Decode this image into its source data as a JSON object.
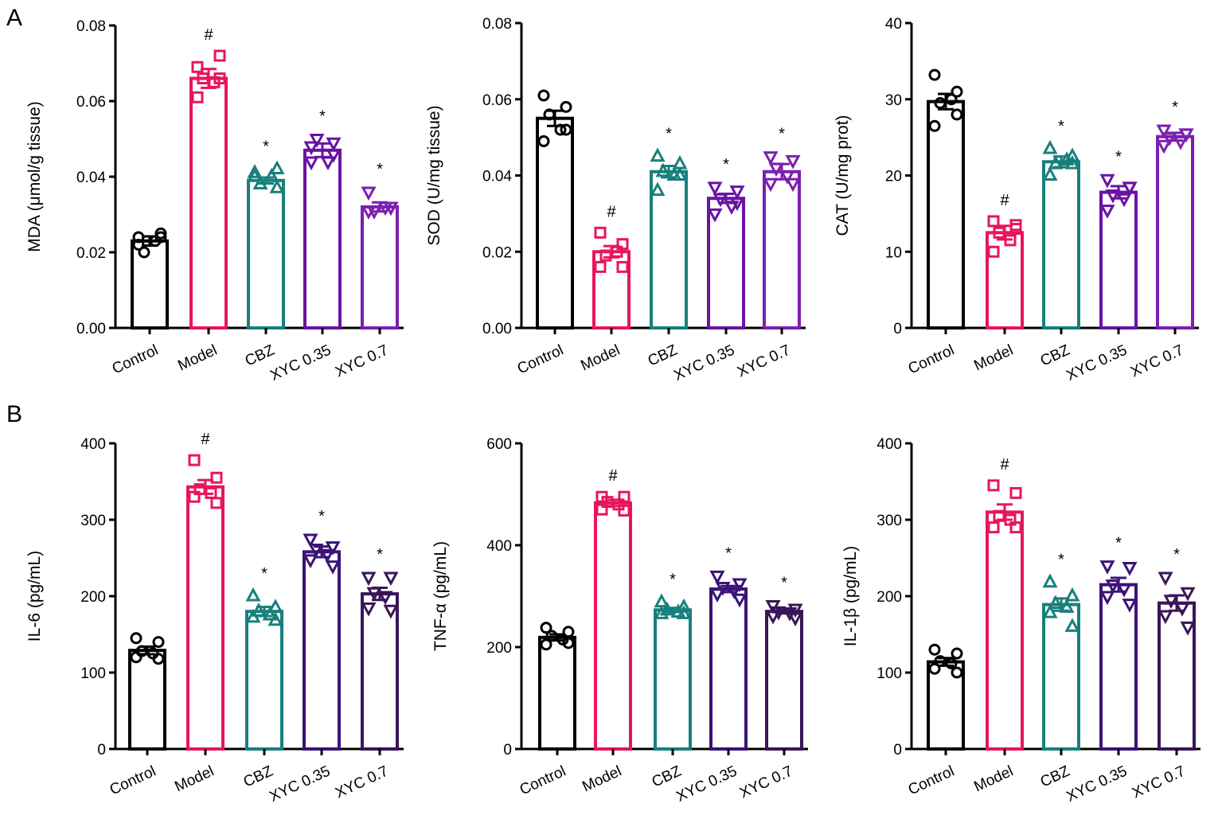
{
  "panel_labels": [
    "A",
    "B"
  ],
  "groups": [
    "Control",
    "Model",
    "CBZ",
    "XYC 0.35",
    "XYC 0.7"
  ],
  "colors": {
    "Control": "#000000",
    "Model": "#e8155e",
    "CBZ": "#17807c",
    "XYC 0.35 (A)": "#6a12a6",
    "XYC 0.7 (A)": "#7b1fb0",
    "XYC 0.35 (B)": "#3b1378",
    "XYC 0.7 (B)": "#3a1558"
  },
  "chart_data": [
    {
      "type": "bar",
      "panel": "A",
      "ylabel": "MDA (μmol/g tissue)",
      "ylim": [
        0,
        0.08
      ],
      "yticks": [
        "0.00",
        "0.02",
        "0.04",
        "0.06",
        "0.08"
      ],
      "ytick_values": [
        0,
        0.02,
        0.04,
        0.06,
        0.08
      ],
      "categories": [
        "Control",
        "Model",
        "CBZ",
        "XYC 0.35",
        "XYC 0.7"
      ],
      "values": [
        0.023,
        0.066,
        0.039,
        0.047,
        0.032
      ],
      "sem": [
        0.0012,
        0.0025,
        0.0008,
        0.0018,
        0.0012
      ],
      "points": [
        [
          0.024,
          0.025,
          0.02,
          0.023,
          0.022,
          0.024
        ],
        [
          0.069,
          0.072,
          0.066,
          0.065,
          0.061,
          0.066
        ],
        [
          0.041,
          0.042,
          0.038,
          0.04,
          0.04,
          0.037
        ],
        [
          0.048,
          0.049,
          0.05,
          0.044,
          0.044,
          0.046
        ],
        [
          0.036,
          0.032,
          0.031,
          0.032,
          0.031,
          0.032
        ]
      ],
      "annotations": [
        "",
        "#",
        "*",
        "*",
        "*"
      ]
    },
    {
      "type": "bar",
      "panel": "A",
      "ylabel": "SOD (U/mg tissue)",
      "ylim": [
        0,
        0.08
      ],
      "yticks": [
        "0.00",
        "0.02",
        "0.04",
        "0.06",
        "0.08"
      ],
      "ytick_values": [
        0,
        0.02,
        0.04,
        0.06,
        0.08
      ],
      "categories": [
        "Control",
        "Model",
        "CBZ",
        "XYC 0.35",
        "XYC 0.7"
      ],
      "values": [
        0.055,
        0.02,
        0.041,
        0.034,
        0.041
      ],
      "sem": [
        0.002,
        0.0015,
        0.0015,
        0.0012,
        0.002
      ],
      "points": [
        [
          0.061,
          0.058,
          0.056,
          0.052,
          0.049,
          0.052
        ],
        [
          0.025,
          0.022,
          0.019,
          0.02,
          0.016,
          0.016
        ],
        [
          0.045,
          0.043,
          0.041,
          0.04,
          0.036,
          0.04
        ],
        [
          0.037,
          0.036,
          0.034,
          0.032,
          0.03,
          0.033
        ],
        [
          0.045,
          0.044,
          0.042,
          0.04,
          0.038,
          0.038
        ]
      ],
      "annotations": [
        "",
        "#",
        "*",
        "*",
        "*"
      ]
    },
    {
      "type": "bar",
      "panel": "A",
      "ylabel": "CAT (U/mg prot)",
      "ylim": [
        0,
        40
      ],
      "yticks": [
        "0",
        "10",
        "20",
        "30",
        "40"
      ],
      "ytick_values": [
        0,
        10,
        20,
        30,
        40
      ],
      "categories": [
        "Control",
        "Model",
        "CBZ",
        "XYC 0.35",
        "XYC 0.7"
      ],
      "values": [
        29.7,
        12.5,
        21.8,
        17.8,
        25.1
      ],
      "sem": [
        1.0,
        0.9,
        0.7,
        0.8,
        0.5
      ],
      "points": [
        [
          33.2,
          31.0,
          29.5,
          30.0,
          26.5,
          28.0
        ],
        [
          14.0,
          13.0,
          12.5,
          11.5,
          10.0,
          13.5
        ],
        [
          23.5,
          22.5,
          21.5,
          22.0,
          20.0,
          21.5
        ],
        [
          19.5,
          18.5,
          17.5,
          17.0,
          15.5,
          18.5
        ],
        [
          26.0,
          25.5,
          25.0,
          24.5,
          24.0,
          25.5
        ]
      ],
      "annotations": [
        "",
        "#",
        "*",
        "*",
        "*"
      ]
    },
    {
      "type": "bar",
      "panel": "B",
      "ylabel": "IL-6 (pg/mL)",
      "ylim": [
        0,
        400
      ],
      "yticks": [
        "0",
        "100",
        "200",
        "300",
        "400"
      ],
      "ytick_values": [
        0,
        100,
        200,
        300,
        400
      ],
      "categories": [
        "Control",
        "Model",
        "CBZ",
        "XYC 0.35",
        "XYC 0.7"
      ],
      "values": [
        129,
        343,
        180,
        258,
        203
      ],
      "sem": [
        5,
        9,
        6,
        7,
        8
      ],
      "points": [
        [
          145,
          140,
          128,
          125,
          120,
          118
        ],
        [
          378,
          355,
          340,
          335,
          330,
          322
        ],
        [
          200,
          185,
          180,
          175,
          172,
          168
        ],
        [
          275,
          265,
          262,
          255,
          248,
          240
        ],
        [
          225,
          225,
          205,
          200,
          185,
          182
        ]
      ],
      "annotations": [
        "",
        "#",
        "*",
        "*",
        "*"
      ]
    },
    {
      "type": "bar",
      "panel": "B",
      "ylabel": "TNF-α (pg/mL)",
      "ylim": [
        0,
        600
      ],
      "yticks": [
        "0",
        "200",
        "400",
        "600"
      ],
      "ytick_values": [
        0,
        200,
        400,
        600
      ],
      "categories": [
        "Control",
        "Model",
        "CBZ",
        "XYC 0.35",
        "XYC 0.7"
      ],
      "values": [
        219,
        483,
        273,
        314,
        270
      ],
      "sem": [
        6,
        6,
        4,
        6,
        4
      ],
      "points": [
        [
          238,
          230,
          222,
          215,
          205,
          208
        ],
        [
          495,
          495,
          485,
          480,
          470,
          468
        ],
        [
          288,
          278,
          272,
          268,
          265,
          265
        ],
        [
          340,
          325,
          318,
          312,
          305,
          295
        ],
        [
          282,
          275,
          270,
          268,
          262,
          258
        ]
      ],
      "annotations": [
        "",
        "#",
        "*",
        "*",
        "*"
      ]
    },
    {
      "type": "bar",
      "panel": "B",
      "ylabel": "IL-1β (pg/mL)",
      "ylim": [
        0,
        400
      ],
      "yticks": [
        "0",
        "100",
        "200",
        "300",
        "400"
      ],
      "ytick_values": [
        0,
        100,
        200,
        300,
        400
      ],
      "categories": [
        "Control",
        "Model",
        "CBZ",
        "XYC 0.35",
        "XYC 0.7"
      ],
      "values": [
        114,
        310,
        189,
        215,
        191
      ],
      "sem": [
        5,
        10,
        8,
        9,
        10
      ],
      "points": [
        [
          130,
          125,
          115,
          112,
          105,
          100
        ],
        [
          345,
          335,
          305,
          300,
          290,
          290
        ],
        [
          218,
          200,
          190,
          185,
          178,
          160
        ],
        [
          240,
          238,
          215,
          210,
          200,
          190
        ],
        [
          225,
          205,
          195,
          185,
          175,
          160
        ]
      ],
      "annotations": [
        "",
        "#",
        "*",
        "*",
        "*"
      ]
    }
  ]
}
